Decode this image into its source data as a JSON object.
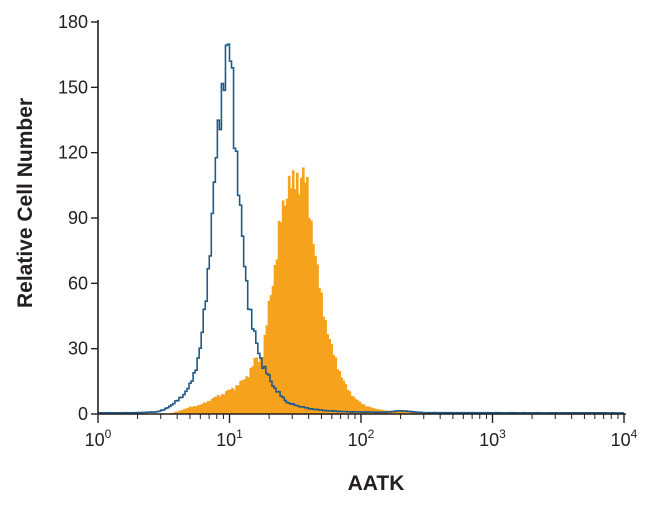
{
  "chart_data": {
    "type": "area",
    "xlabel": "AATK",
    "ylabel": "Relative Cell Number",
    "xscale": "log",
    "xlim": [
      1,
      10000
    ],
    "ylim": [
      0,
      180
    ],
    "x_ticks": [
      {
        "value": 1,
        "base": "10",
        "exp": "0"
      },
      {
        "value": 10,
        "base": "10",
        "exp": "1"
      },
      {
        "value": 100,
        "base": "10",
        "exp": "2"
      },
      {
        "value": 1000,
        "base": "10",
        "exp": "3"
      },
      {
        "value": 10000,
        "base": "10",
        "exp": "4"
      }
    ],
    "y_ticks": [
      "0",
      "30",
      "60",
      "90",
      "120",
      "150",
      "180"
    ],
    "grid": false,
    "legend": "none",
    "series": [
      {
        "style": "step-outline",
        "color": "#1f5a8a",
        "points": [
          [
            1,
            0.5
          ],
          [
            2,
            0.6
          ],
          [
            2.8,
            1
          ],
          [
            3.2,
            2
          ],
          [
            3.6,
            4
          ],
          [
            4,
            6
          ],
          [
            4.5,
            9
          ],
          [
            5,
            13
          ],
          [
            5.5,
            20
          ],
          [
            6,
            30
          ],
          [
            6.5,
            48
          ],
          [
            7,
            70
          ],
          [
            7.5,
            95
          ],
          [
            8,
            120
          ],
          [
            8.5,
            140
          ],
          [
            9,
            153
          ],
          [
            9.5,
            163
          ],
          [
            10,
            166
          ],
          [
            10.5,
            158
          ],
          [
            11,
            128
          ],
          [
            12,
            95
          ],
          [
            13,
            70
          ],
          [
            14,
            52
          ],
          [
            15,
            40
          ],
          [
            16.5,
            30
          ],
          [
            18,
            22
          ],
          [
            20,
            17
          ],
          [
            22,
            12
          ],
          [
            25,
            8
          ],
          [
            28,
            5
          ],
          [
            32,
            4
          ],
          [
            40,
            2.5
          ],
          [
            55,
            1.5
          ],
          [
            80,
            1
          ],
          [
            150,
            0.8
          ],
          [
            200,
            1.5
          ],
          [
            300,
            0.6
          ],
          [
            10000,
            0.5
          ]
        ]
      },
      {
        "style": "filled",
        "color": "#f6a21c",
        "points": [
          [
            1,
            0
          ],
          [
            3.5,
            0
          ],
          [
            4,
            1
          ],
          [
            5,
            3
          ],
          [
            6,
            4
          ],
          [
            7,
            6
          ],
          [
            8,
            8
          ],
          [
            9,
            9
          ],
          [
            10,
            11
          ],
          [
            11,
            12
          ],
          [
            12,
            14
          ],
          [
            13,
            16
          ],
          [
            14,
            18
          ],
          [
            15,
            22
          ],
          [
            16,
            26
          ],
          [
            17,
            24
          ],
          [
            18,
            28
          ],
          [
            19,
            38
          ],
          [
            20,
            50
          ],
          [
            21,
            58
          ],
          [
            22,
            66
          ],
          [
            23,
            74
          ],
          [
            24,
            84
          ],
          [
            25,
            92
          ],
          [
            26,
            97
          ],
          [
            27,
            101
          ],
          [
            28,
            105
          ],
          [
            29,
            109
          ],
          [
            30,
            103
          ],
          [
            31,
            104
          ],
          [
            32,
            108
          ],
          [
            33,
            109
          ],
          [
            34,
            105
          ],
          [
            35,
            112
          ],
          [
            36,
            108
          ],
          [
            37,
            110
          ],
          [
            38,
            107
          ],
          [
            40,
            97
          ],
          [
            42,
            88
          ],
          [
            44,
            79
          ],
          [
            46,
            68
          ],
          [
            48,
            60
          ],
          [
            50,
            53
          ],
          [
            53,
            45
          ],
          [
            56,
            37
          ],
          [
            60,
            30
          ],
          [
            65,
            24
          ],
          [
            70,
            18
          ],
          [
            75,
            14
          ],
          [
            80,
            11
          ],
          [
            90,
            7
          ],
          [
            100,
            5
          ],
          [
            110,
            3.5
          ],
          [
            125,
            2.5
          ],
          [
            150,
            1.5
          ],
          [
            200,
            1
          ],
          [
            300,
            0.6
          ],
          [
            1000,
            0.3
          ],
          [
            10000,
            0
          ]
        ]
      }
    ]
  }
}
